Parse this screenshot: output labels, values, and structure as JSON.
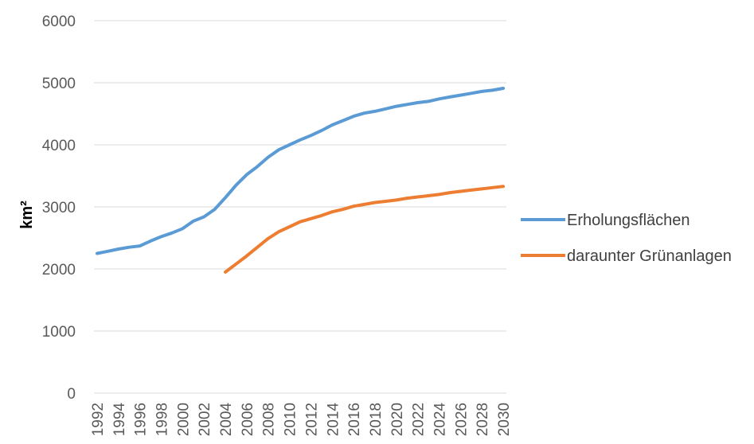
{
  "chart_data": {
    "type": "line",
    "title": "",
    "xlabel": "",
    "ylabel": "km²",
    "ylim": [
      0,
      6000
    ],
    "yticks": [
      0,
      1000,
      2000,
      3000,
      4000,
      5000,
      6000
    ],
    "grid": true,
    "legend_position": "right",
    "categories": [
      "1992",
      "1993",
      "1994",
      "1995",
      "1996",
      "1997",
      "1998",
      "1999",
      "2000",
      "2001",
      "2002",
      "2003",
      "2004",
      "2005",
      "2006",
      "2007",
      "2008",
      "2009",
      "2010",
      "2011",
      "2012",
      "2013",
      "2014",
      "2015",
      "2016",
      "2017",
      "2018",
      "2019",
      "2020",
      "2021",
      "2022",
      "2023",
      "2024",
      "2025",
      "2026",
      "2027",
      "2028",
      "2029",
      "2030"
    ],
    "xtick_labels": [
      "1992",
      "1994",
      "1996",
      "1998",
      "2000",
      "2002",
      "2004",
      "2006",
      "2008",
      "2010",
      "2012",
      "2014",
      "2016",
      "2018",
      "2020",
      "2022",
      "2024",
      "2026",
      "2028",
      "2030"
    ],
    "series": [
      {
        "name": "Erholungsflächen",
        "color": "#5B9BD5",
        "values": [
          2250,
          2285,
          2320,
          2350,
          2370,
          2450,
          2520,
          2580,
          2650,
          2770,
          2840,
          2960,
          3150,
          3350,
          3520,
          3650,
          3800,
          3920,
          4000,
          4080,
          4150,
          4230,
          4320,
          4390,
          4460,
          4510,
          4540,
          4580,
          4620,
          4650,
          4680,
          4700,
          4740,
          4770,
          4800,
          4830,
          4860,
          4880,
          4910
        ]
      },
      {
        "name": "daraunter Grünanlagen",
        "color": "#ED7D31",
        "values": [
          null,
          null,
          null,
          null,
          null,
          null,
          null,
          null,
          null,
          null,
          null,
          null,
          1950,
          2080,
          2210,
          2350,
          2490,
          2600,
          2680,
          2760,
          2810,
          2860,
          2920,
          2960,
          3010,
          3040,
          3070,
          3090,
          3110,
          3140,
          3160,
          3180,
          3200,
          3230,
          3250,
          3270,
          3290,
          3310,
          3330
        ]
      }
    ]
  }
}
